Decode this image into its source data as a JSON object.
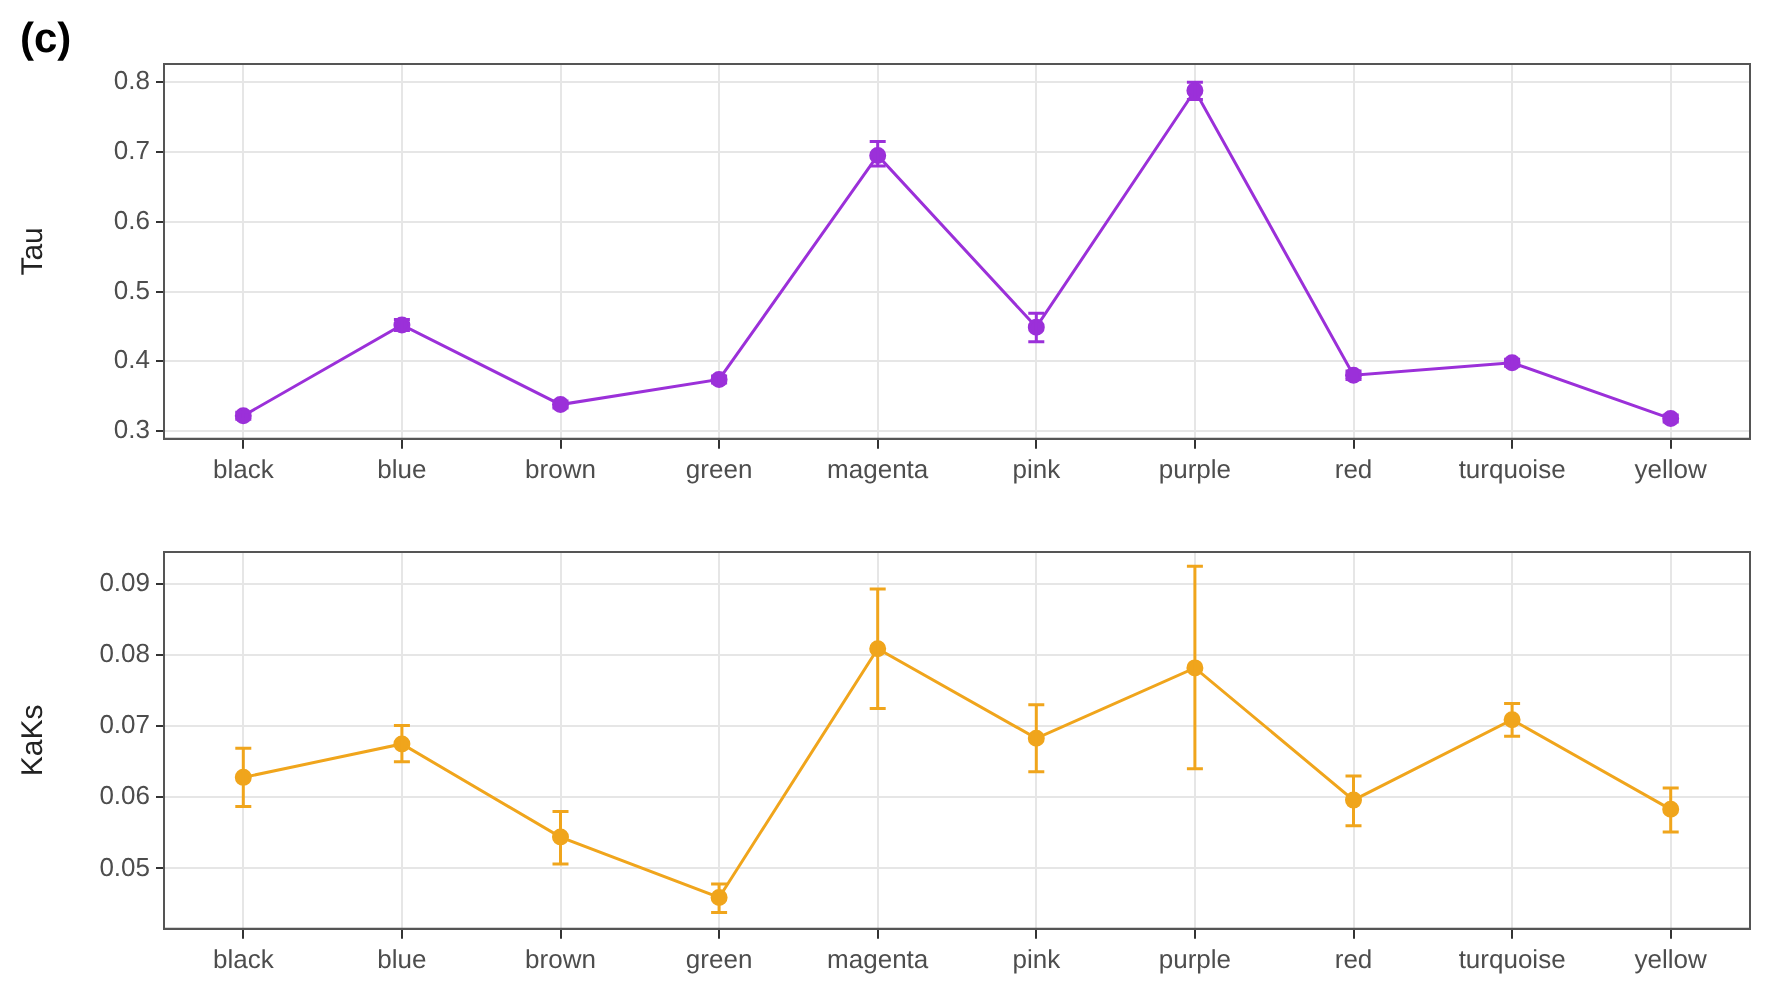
{
  "chart_data": [
    {
      "type": "line",
      "annotations": [
        "(c)"
      ],
      "ylabel": "Tau",
      "categories": [
        "black",
        "blue",
        "brown",
        "green",
        "magenta",
        "pink",
        "purple",
        "red",
        "turquoise",
        "yellow"
      ],
      "series": [
        {
          "color": "#9b30d9",
          "values": [
            0.322,
            0.452,
            0.338,
            0.374,
            0.695,
            0.449,
            0.788,
            0.38,
            0.398,
            0.318
          ],
          "errors": [
            [
              0.317,
              0.327
            ],
            [
              0.444,
              0.46
            ],
            [
              0.333,
              0.343
            ],
            [
              0.369,
              0.379
            ],
            [
              0.68,
              0.715
            ],
            [
              0.428,
              0.469
            ],
            [
              0.775,
              0.8
            ],
            [
              0.374,
              0.386
            ],
            [
              0.393,
              0.403
            ],
            [
              0.313,
              0.323
            ]
          ]
        }
      ],
      "ylim": [
        0.289,
        0.826
      ],
      "yticks": [
        0.3,
        0.4,
        0.5,
        0.6,
        0.7,
        0.8
      ],
      "grid": true,
      "marker": "circle",
      "legend": false
    },
    {
      "type": "line",
      "ylabel": "KaKs",
      "categories": [
        "black",
        "blue",
        "brown",
        "green",
        "magenta",
        "pink",
        "purple",
        "red",
        "turquoise",
        "yellow"
      ],
      "series": [
        {
          "color": "#f0a51c",
          "values": [
            0.0628,
            0.0675,
            0.0544,
            0.0459,
            0.0809,
            0.0683,
            0.0782,
            0.0596,
            0.0709,
            0.0583
          ],
          "errors": [
            [
              0.0587,
              0.0669
            ],
            [
              0.065,
              0.0701
            ],
            [
              0.0506,
              0.058
            ],
            [
              0.0438,
              0.0478
            ],
            [
              0.0725,
              0.0893
            ],
            [
              0.0636,
              0.073
            ],
            [
              0.064,
              0.0925
            ],
            [
              0.056,
              0.063
            ],
            [
              0.0686,
              0.0732
            ],
            [
              0.0551,
              0.0613
            ]
          ]
        }
      ],
      "ylim": [
        0.0415,
        0.0945
      ],
      "yticks": [
        0.05,
        0.06,
        0.07,
        0.08,
        0.09
      ],
      "grid": true,
      "marker": "circle",
      "legend": false
    }
  ]
}
